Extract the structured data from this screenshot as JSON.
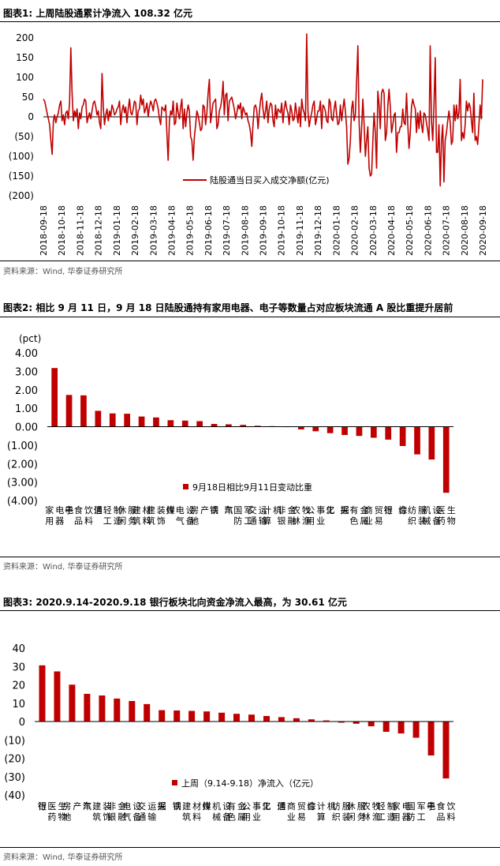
{
  "colors": {
    "bar": "#c00000",
    "axis": "#000000"
  },
  "figures": [
    {
      "title": "图表1:  上周陆股通累计净流入 108.32 亿元",
      "source": "资料来源：Wind, 华泰证券研究所"
    },
    {
      "title": "图表2:  相比 9 月 11 日，9 月 18 日陆股通持有家用电器、电子等数量占对应板块流通 A 股比重提升居前",
      "source": "资料来源：Wind, 华泰证券研究所"
    },
    {
      "title": "图表3:  2020.9.14-2020.9.18 银行板块北向资金净流入最高，为 30.61 亿元",
      "source": "资料来源：Wind, 华泰证券研究所"
    }
  ],
  "chart_data": [
    {
      "type": "line",
      "title": "上周陆股通累计净流入 108.32 亿元",
      "series_name": "陆股通当日买入成交净额(亿元)",
      "ylim": [
        -200,
        200
      ],
      "y_ticks": [
        "200",
        "150",
        "100",
        "50",
        "0",
        "(50)",
        "(100)",
        "(150)",
        "(200)"
      ],
      "x_ticks": [
        "2018-09-18",
        "2018-10-18",
        "2018-11-18",
        "2018-12-18",
        "2019-01-18",
        "2019-02-18",
        "2019-03-18",
        "2019-04-18",
        "2019-05-18",
        "2019-06-18",
        "2019-07-18",
        "2019-08-18",
        "2019-09-18",
        "2019-10-18",
        "2019-11-18",
        "2019-12-18",
        "2020-01-18",
        "2020-02-18",
        "2020-03-18",
        "2020-04-18",
        "2020-05-18",
        "2020-06-18",
        "2020-07-18",
        "2020-08-18",
        "2020-09-18"
      ],
      "values": [
        45,
        40,
        25,
        10,
        -5,
        -20,
        -60,
        -95,
        -10,
        5,
        -15,
        0,
        10,
        30,
        40,
        -10,
        5,
        -20,
        10,
        15,
        -5,
        35,
        175,
        60,
        -10,
        15,
        0,
        20,
        -30,
        10,
        -5,
        25,
        30,
        45,
        40,
        -15,
        0,
        10,
        -5,
        15,
        35,
        40,
        25,
        5,
        15,
        -15,
        -30,
        110,
        25,
        -20,
        5,
        20,
        -10,
        15,
        0,
        30,
        20,
        5,
        10,
        20,
        25,
        40,
        -20,
        15,
        30,
        10,
        25,
        -15,
        20,
        45,
        10,
        5,
        20,
        40,
        35,
        -20,
        15,
        20,
        55,
        30,
        45,
        10,
        20,
        35,
        0,
        25,
        40,
        30,
        15,
        40,
        45,
        35,
        20,
        -5,
        -20,
        25,
        20,
        15,
        30,
        -45,
        -110,
        -10,
        15,
        5,
        40,
        -20,
        -15,
        35,
        10,
        -5,
        25,
        45,
        -30,
        20,
        -25,
        10,
        30,
        15,
        -50,
        -60,
        -110,
        -50,
        -20,
        15,
        5,
        -15,
        -35,
        -30,
        30,
        25,
        -20,
        10,
        60,
        95,
        -15,
        10,
        35,
        40,
        45,
        -30,
        -20,
        15,
        25,
        45,
        90,
        5,
        55,
        60,
        -10,
        40,
        45,
        50,
        35,
        20,
        -5,
        10,
        30,
        20,
        35,
        -5,
        25,
        15,
        5,
        10,
        -10,
        -20,
        -40,
        -75,
        -20,
        25,
        30,
        15,
        -30,
        10,
        40,
        60,
        20,
        -5,
        15,
        40,
        -15,
        20,
        35,
        30,
        -10,
        -25,
        30,
        -5,
        20,
        15,
        10,
        35,
        -15,
        20,
        40,
        20,
        10,
        -20,
        30,
        15,
        -10,
        -5,
        35,
        10,
        -15,
        25,
        -25,
        45,
        20,
        10,
        -10,
        210,
        15,
        -25,
        -5,
        10,
        30,
        40,
        -20,
        -5,
        15,
        15,
        40,
        -30,
        30,
        25,
        15,
        -10,
        -15,
        45,
        35,
        -5,
        -10,
        20,
        40,
        5,
        -20,
        -15,
        30,
        -10,
        20,
        45,
        15,
        -25,
        -120,
        -105,
        -60,
        20,
        40,
        -10,
        5,
        90,
        180,
        -10,
        -90,
        -30,
        45,
        -20,
        -100,
        -60,
        -25,
        -130,
        -150,
        -145,
        -60,
        10,
        -40,
        -130,
        65,
        30,
        -30,
        60,
        70,
        60,
        -60,
        -40,
        25,
        70,
        25,
        -40,
        -20,
        5,
        10,
        -90,
        -40,
        -40,
        -25,
        -25,
        20,
        -15,
        -20,
        60,
        -20,
        -80,
        -40,
        25,
        45,
        30,
        20,
        -40,
        10,
        -30,
        15,
        -20,
        -40,
        10,
        5,
        -15,
        -35,
        -60,
        180,
        -10,
        -60,
        30,
        150,
        -90,
        -90,
        -20,
        -175,
        -60,
        -20,
        -165,
        -60,
        -40,
        -10,
        15,
        -15,
        -70,
        -60,
        30,
        -10,
        30,
        -5,
        10,
        95,
        -60,
        -40,
        -55,
        -20,
        40,
        15,
        35,
        25,
        -10,
        -40,
        60,
        -60,
        -50,
        -70,
        -20,
        30,
        -5,
        95
      ]
    },
    {
      "type": "bar",
      "title": "相比 9 月 11 日，9 月 18 日陆股通持有家用电器、电子等数量占对应板块流通 A 股比重提升居前",
      "unit_label": "(pct)",
      "series_name": "9月18日相比9月11日变动比重",
      "ylim": [
        -4,
        4
      ],
      "y_ticks": [
        "4.00",
        "3.00",
        "2.00",
        "1.00",
        "0.00",
        "(1.00)",
        "(2.00)",
        "(3.00)",
        "(4.00)"
      ],
      "categories": [
        "家用电器",
        "电子",
        "食品饮料",
        "通信",
        "轻工制造",
        "休闲服务",
        "建筑材料",
        "建筑装饰",
        "传媒",
        "电气设备",
        "房地产",
        "钢铁",
        "汽车",
        "国防军工",
        "交通运输",
        "计算机",
        "非银金融",
        "农林牧渔",
        "公用事业",
        "化工",
        "采掘",
        "有色金属",
        "商业贸易",
        "银行",
        "综合",
        "纺织服装",
        "机械设备",
        "医药生物"
      ],
      "values": [
        3.18,
        1.72,
        1.7,
        0.86,
        0.72,
        0.7,
        0.55,
        0.5,
        0.35,
        0.33,
        0.3,
        0.15,
        0.13,
        0.1,
        0.05,
        0.03,
        -0.02,
        -0.15,
        -0.25,
        -0.35,
        -0.45,
        -0.5,
        -0.6,
        -0.7,
        -1.05,
        -1.5,
        -1.78,
        -3.58
      ]
    },
    {
      "type": "bar",
      "title": "2020.9.14-2020.9.18 银行板块北向资金净流入最高，为 30.61 亿元",
      "series_name": "上周（9.14-9.18）净流入（亿元）",
      "ylim": [
        -40,
        40
      ],
      "y_ticks": [
        "40",
        "30",
        "20",
        "10",
        "0",
        "(10)",
        "(20)",
        "(30)",
        "(40)"
      ],
      "categories": [
        "银行",
        "医药生物",
        "房地产",
        "汽车",
        "建筑装饰",
        "非银金融",
        "电气设备",
        "交通运输",
        "采掘",
        "钢铁",
        "建筑材料",
        "传媒",
        "机械设备",
        "有色金属",
        "公用事业",
        "化工",
        "通信",
        "商业贸易",
        "综合",
        "计算机",
        "纺织服装",
        "休闲服务",
        "农林牧渔",
        "轻工制造",
        "家用电器",
        "国防军工",
        "电子",
        "食品饮料"
      ],
      "values": [
        30.61,
        27.3,
        20.1,
        15.1,
        14.2,
        12.5,
        11.2,
        9.5,
        6.2,
        6.0,
        5.8,
        5.5,
        4.8,
        4.2,
        3.8,
        3.0,
        2.4,
        1.8,
        1.2,
        0.6,
        -0.6,
        -1.2,
        -2.6,
        -5.6,
        -6.5,
        -8.8,
        -18.5,
        -31.0
      ]
    }
  ]
}
